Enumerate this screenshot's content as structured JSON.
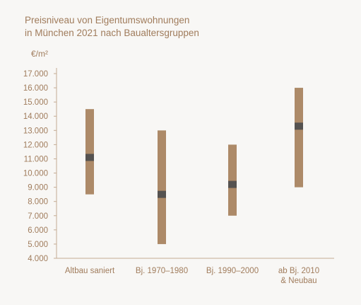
{
  "chart_data": {
    "type": "floating-range",
    "title_lines": [
      "Preisniveau von Eigentumswohnungen",
      "in München 2021 nach Baualtersgruppen"
    ],
    "ylabel": "€/m²",
    "ylim": [
      4000,
      17000
    ],
    "yticks": [
      {
        "value": 17000,
        "label": "17.000"
      },
      {
        "value": 16000,
        "label": "16.000"
      },
      {
        "value": 15000,
        "label": "15.000"
      },
      {
        "value": 14000,
        "label": "14.000"
      },
      {
        "value": 13000,
        "label": "13.000"
      },
      {
        "value": 12000,
        "label": "12.000"
      },
      {
        "value": 11000,
        "label": "11.000"
      },
      {
        "value": 10000,
        "label": "10.000"
      },
      {
        "value": 9000,
        "label": "9.000"
      },
      {
        "value": 8000,
        "label": "8.000"
      },
      {
        "value": 7000,
        "label": "7.000"
      },
      {
        "value": 6000,
        "label": "6.000"
      },
      {
        "value": 5000,
        "label": "5.000"
      },
      {
        "value": 4000,
        "label": "4.000"
      }
    ],
    "categories": [
      {
        "label_lines": [
          "Altbau saniert"
        ],
        "min": 8500,
        "max": 14500,
        "median": 11100
      },
      {
        "label_lines": [
          "Bj. 1970–1980"
        ],
        "min": 5000,
        "max": 13000,
        "median": 8500
      },
      {
        "label_lines": [
          "Bj. 1990–2000"
        ],
        "min": 7000,
        "max": 12000,
        "median": 9200
      },
      {
        "label_lines": [
          "ab Bj. 2010",
          "& Neubau"
        ],
        "min": 9000,
        "max": 16000,
        "median": 13300
      }
    ],
    "colors": {
      "range": "#ad8a68",
      "median": "#555250",
      "axis": "#c4ab93",
      "text": "#a07c5c",
      "background": "#f8f7f5"
    },
    "grid": false
  }
}
